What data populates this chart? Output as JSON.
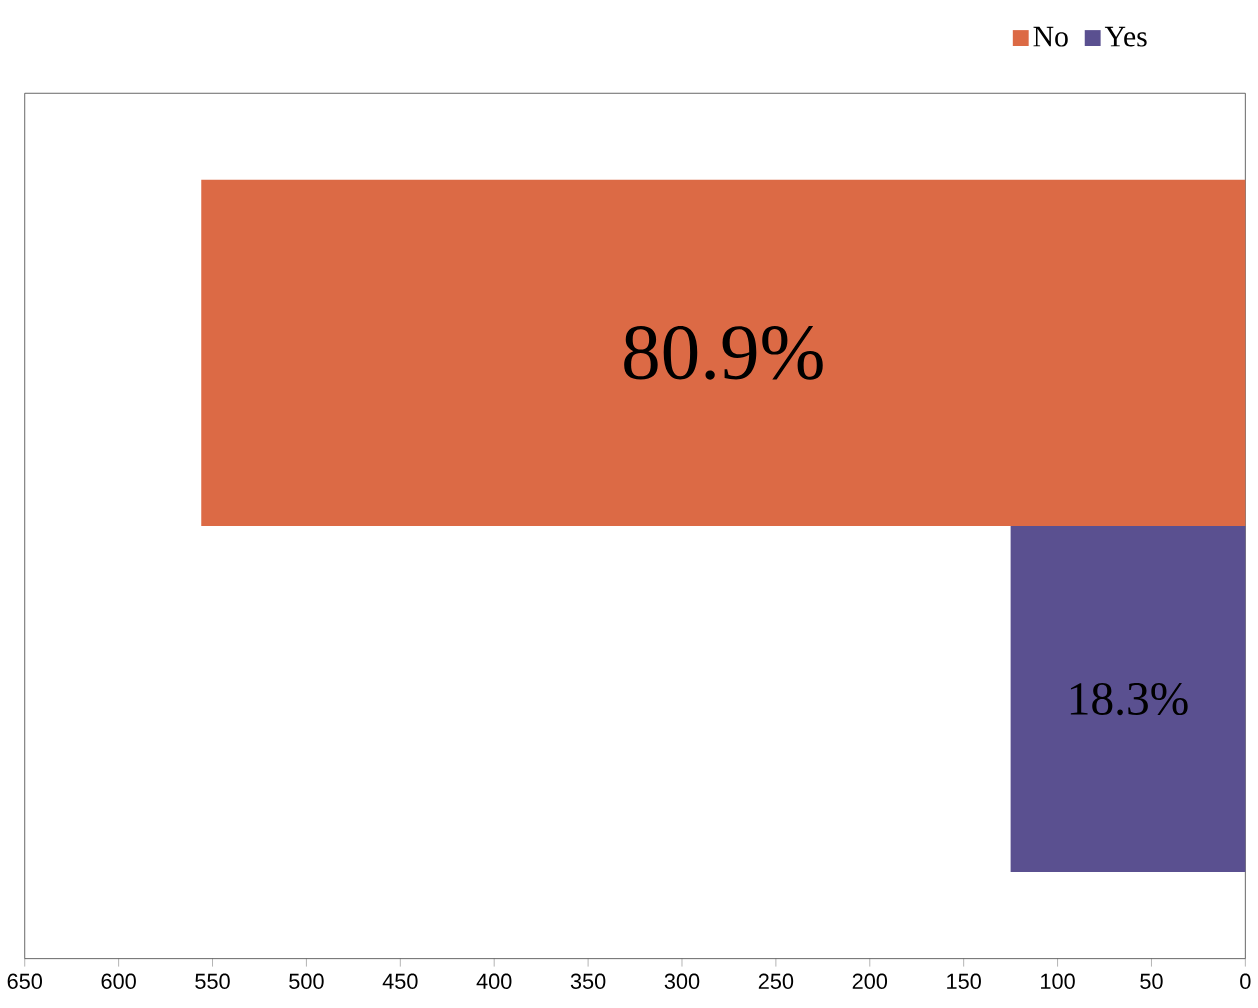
{
  "chart_data": {
    "type": "bar",
    "orientation": "horizontal",
    "categories": [
      null
    ],
    "series": [
      {
        "name": "No",
        "color": "#dc6a45",
        "values": [
          556
        ]
      },
      {
        "name": "Yes",
        "color": "#5a5090",
        "values": [
          125
        ]
      }
    ],
    "xlim": [
      650,
      0
    ],
    "xticks": [
      650,
      600,
      550,
      500,
      450,
      400,
      350,
      300,
      250,
      200,
      150,
      100,
      50,
      0
    ],
    "annotations": [
      "80.9%",
      "18.3%"
    ],
    "legend": "top right"
  }
}
